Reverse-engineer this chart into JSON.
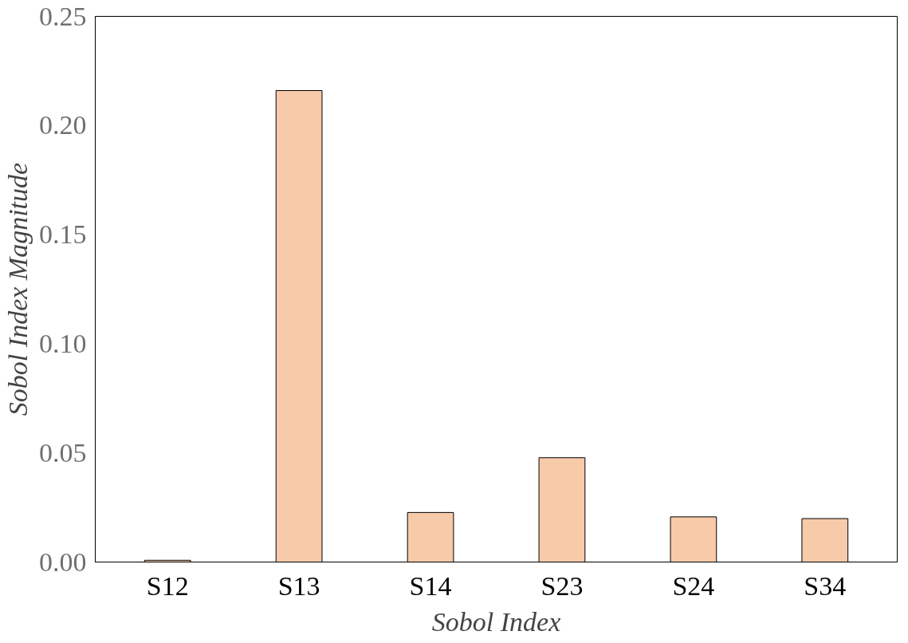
{
  "chart_data": {
    "type": "bar",
    "xlabel": "Sobol Index",
    "ylabel": "Sobol Index Magnitude",
    "categories": [
      "S12",
      "S13",
      "S14",
      "S23",
      "S24",
      "S34"
    ],
    "series": [
      {
        "color": "#f7caaa",
        "values": [
          0.0008,
          0.216,
          0.0227,
          0.0478,
          0.0207,
          0.0199
        ]
      }
    ],
    "ylim": [
      0,
      0.25
    ],
    "yticks": [
      {
        "value": 0,
        "label": "0.00"
      },
      {
        "value": 0.05,
        "label": "0.05"
      },
      {
        "value": 0.1,
        "label": "0.10"
      },
      {
        "value": 0.15,
        "label": "0.15"
      },
      {
        "value": 0.2,
        "label": "0.20"
      },
      {
        "value": 0.25,
        "label": "0.25"
      }
    ],
    "grid": false
  }
}
